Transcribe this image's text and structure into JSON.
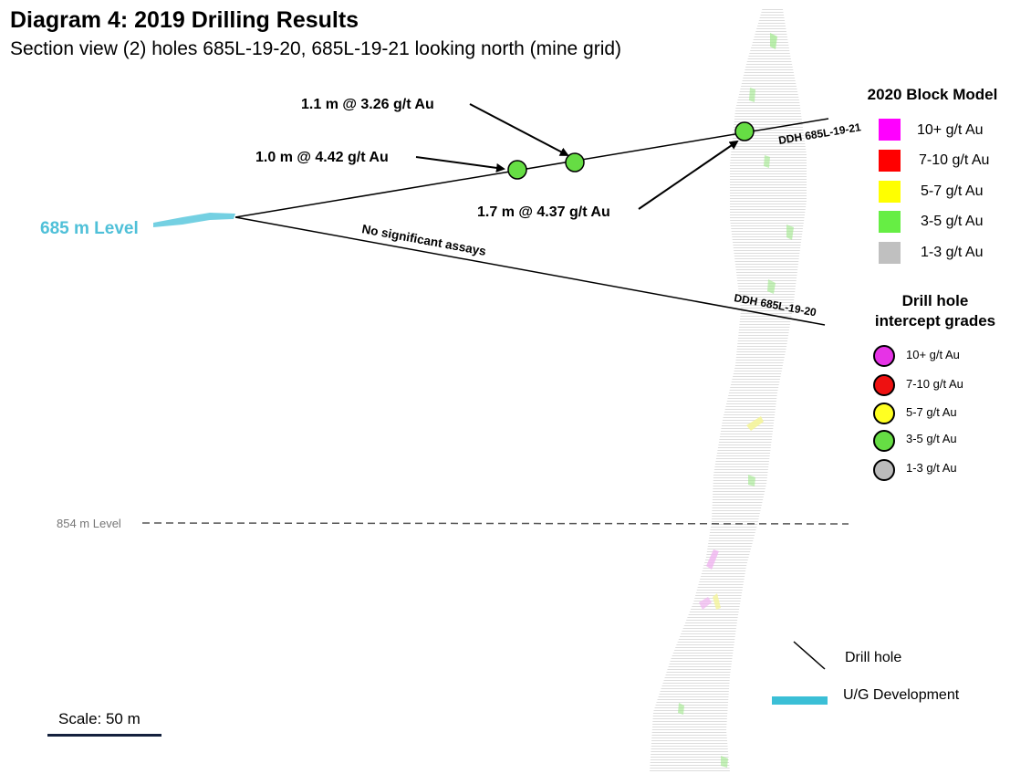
{
  "header": {
    "title": "Diagram 4: 2019 Drilling Results",
    "subtitle": "Section view (2) holes 685L-19-20, 685L-19-21 looking north (mine grid)"
  },
  "section": {
    "level_685": "685 m Level",
    "level_854": "854 m Level",
    "no_significant": "No significant assays",
    "hole_21": "DDH 685L-19-21",
    "hole_20": "DDH 685L-19-20",
    "intercepts": [
      {
        "label": "1.0 m @ 4.42 g/t Au",
        "grade_class": "3-5 g/t Au"
      },
      {
        "label": "1.1 m @ 3.26 g/t Au",
        "grade_class": "3-5 g/t Au"
      },
      {
        "label": "1.7 m @ 4.37 g/t Au",
        "grade_class": "3-5 g/t Au"
      }
    ]
  },
  "block_model_legend": {
    "title": "2020 Block Model",
    "items": [
      {
        "label": "10+ g/t Au",
        "color": "#ff00ff"
      },
      {
        "label": "7-10 g/t Au",
        "color": "#ff0000"
      },
      {
        "label": "5-7 g/t Au",
        "color": "#ffff00"
      },
      {
        "label": "3-5 g/t Au",
        "color": "#66ee44"
      },
      {
        "label": "1-3 g/t Au",
        "color": "#c0c0c0"
      }
    ]
  },
  "intercept_legend": {
    "title_line1": "Drill hole",
    "title_line2": "intercept grades",
    "items": [
      {
        "label": "10+ g/t Au",
        "color": "#e633e6"
      },
      {
        "label": "7-10 g/t Au",
        "color": "#ee1111"
      },
      {
        "label": "5-7 g/t Au",
        "color": "#ffff22"
      },
      {
        "label": "3-5 g/t Au",
        "color": "#66dd44"
      },
      {
        "label": "1-3 g/t Au",
        "color": "#bbbbbb"
      }
    ]
  },
  "symbol_legend": {
    "drill_hole": "Drill hole",
    "ug_development": "U/G Development",
    "ug_color": "#3bbfd6"
  },
  "scale": {
    "label": "Scale: 50 m"
  }
}
